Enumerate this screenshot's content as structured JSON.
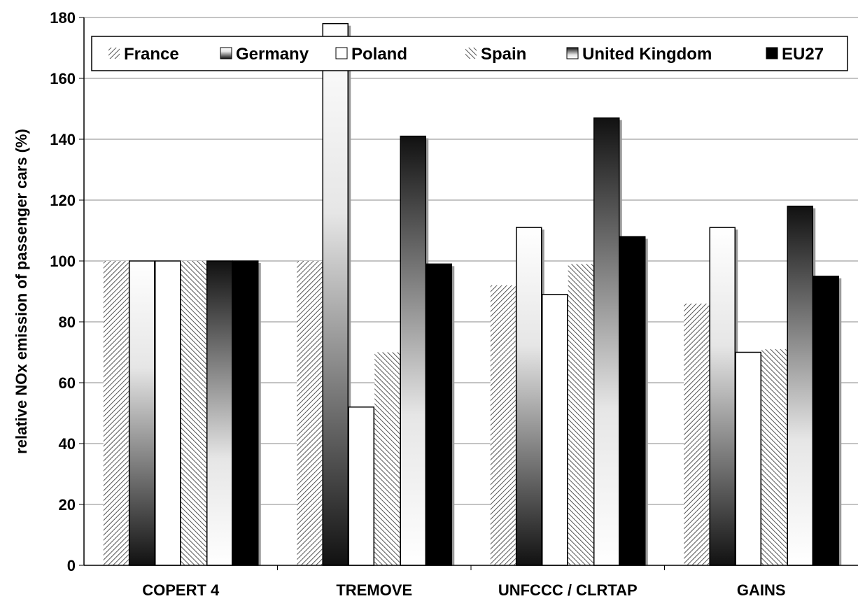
{
  "chart_data": {
    "type": "bar",
    "title": "",
    "xlabel": "",
    "ylabel": "relative NOx emission of passenger cars (%)",
    "ylim": [
      0,
      180
    ],
    "ytick_step": 20,
    "yticks": [
      "0",
      "20",
      "40",
      "60",
      "80",
      "100",
      "120",
      "140",
      "160",
      "180"
    ],
    "grid": true,
    "legend_position": "top",
    "categories": [
      "COPERT 4",
      "TREMOVE",
      "UNFCCC / CLRTAP",
      "GAINS"
    ],
    "series": [
      {
        "name": "France",
        "pattern": "diag-right",
        "values": [
          100,
          100,
          92,
          86
        ]
      },
      {
        "name": "Germany",
        "pattern": "grad-dark-bottom",
        "values": [
          100,
          178,
          111,
          111
        ]
      },
      {
        "name": "Poland",
        "pattern": "white",
        "values": [
          100,
          52,
          89,
          70
        ]
      },
      {
        "name": "Spain",
        "pattern": "diag-left",
        "values": [
          100,
          70,
          99,
          71
        ]
      },
      {
        "name": "United Kingdom",
        "pattern": "grad-dark-top",
        "values": [
          100,
          141,
          147,
          118
        ]
      },
      {
        "name": "EU27",
        "pattern": "black",
        "values": [
          100,
          99,
          108,
          95
        ]
      }
    ]
  }
}
